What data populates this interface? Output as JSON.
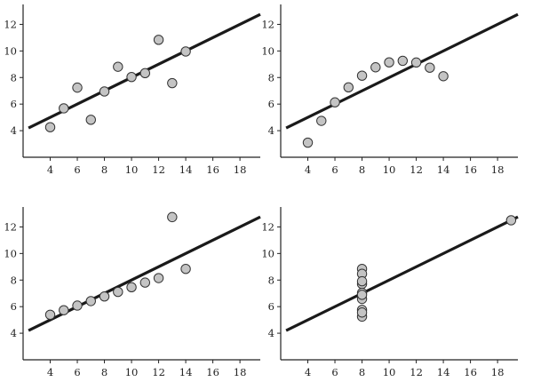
{
  "chart_data": [
    {
      "type": "scatter",
      "xlim": [
        2,
        19.5
      ],
      "ylim": [
        2,
        13.5
      ],
      "xticks": [
        4,
        6,
        8,
        10,
        12,
        14,
        16,
        18
      ],
      "yticks": [
        4,
        6,
        8,
        10,
        12
      ],
      "x": [
        4,
        5,
        6,
        7,
        8,
        9,
        10,
        11,
        12,
        13,
        14
      ],
      "y": [
        4.26,
        5.68,
        7.24,
        4.82,
        6.95,
        8.81,
        8.04,
        8.33,
        10.84,
        7.58,
        9.96
      ],
      "fit": {
        "intercept": 3.0,
        "slope": 0.5
      },
      "grid": false
    },
    {
      "type": "scatter",
      "xlim": [
        2,
        19.5
      ],
      "ylim": [
        2,
        13.5
      ],
      "xticks": [
        4,
        6,
        8,
        10,
        12,
        14,
        16,
        18
      ],
      "yticks": [
        4,
        6,
        8,
        10,
        12
      ],
      "x": [
        4,
        5,
        6,
        7,
        8,
        9,
        10,
        11,
        12,
        13,
        14
      ],
      "y": [
        3.1,
        4.74,
        6.13,
        7.26,
        8.14,
        8.77,
        9.14,
        9.26,
        9.13,
        8.74,
        8.1
      ],
      "fit": {
        "intercept": 3.0,
        "slope": 0.5
      },
      "grid": false
    },
    {
      "type": "scatter",
      "xlim": [
        2,
        19.5
      ],
      "ylim": [
        2,
        13.5
      ],
      "xticks": [
        4,
        6,
        8,
        10,
        12,
        14,
        16,
        18
      ],
      "yticks": [
        4,
        6,
        8,
        10,
        12
      ],
      "x": [
        4,
        5,
        6,
        7,
        8,
        9,
        10,
        11,
        12,
        13,
        14
      ],
      "y": [
        5.39,
        5.73,
        6.08,
        6.42,
        6.77,
        7.11,
        7.46,
        7.81,
        8.15,
        12.74,
        8.84
      ],
      "fit": {
        "intercept": 3.0,
        "slope": 0.5
      },
      "grid": false
    },
    {
      "type": "scatter",
      "xlim": [
        2,
        19.5
      ],
      "ylim": [
        2,
        13.5
      ],
      "xticks": [
        4,
        6,
        8,
        10,
        12,
        14,
        16,
        18
      ],
      "yticks": [
        4,
        6,
        8,
        10,
        12
      ],
      "x": [
        8,
        8,
        8,
        8,
        8,
        8,
        8,
        8,
        8,
        8,
        19
      ],
      "y": [
        6.58,
        5.76,
        7.71,
        8.84,
        8.47,
        7.04,
        5.25,
        5.56,
        7.91,
        6.89,
        12.5
      ],
      "fit": {
        "intercept": 3.0,
        "slope": 0.5
      },
      "grid": false
    }
  ]
}
